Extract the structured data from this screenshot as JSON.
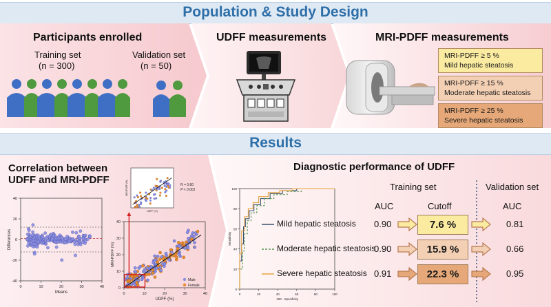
{
  "banner_top": "Population & Study Design",
  "banner_mid": "Results",
  "design": {
    "participants": {
      "title": "Participants enrolled",
      "training_label": "Training set",
      "training_n": "(n = 300)",
      "validation_label": "Validation set",
      "validation_n": "(n = 50)"
    },
    "udff": {
      "title": "UDFF measurements"
    },
    "mri": {
      "title": "MRI-PDFF measurements",
      "grades": [
        {
          "threshold": "MRI-PDFF ≥ 5 %",
          "label": "Mild hepatic steatosis",
          "color": "#fbeba1"
        },
        {
          "threshold": "MRI-PDFF ≥ 15 %",
          "label": "Moderate hepatic steatosis",
          "color": "#f3cfb3"
        },
        {
          "threshold": "MRI-PDFF ≥ 25 %",
          "label": "Severe hepatic steatosis",
          "color": "#e6a878"
        }
      ]
    }
  },
  "results": {
    "corr_title_1": "Correlation between",
    "corr_title_2": "UDFF and MRI-PDFF",
    "perf_title": "Diagnostic performance of UDFF",
    "training_header": "Training set",
    "validation_header": "Validation set",
    "auc_label": "AUC",
    "cutoff_label": "Cutoff",
    "rows": [
      {
        "name": "Mild hepatic steatosis",
        "auc_train": "0.90",
        "cutoff": "7.6 %",
        "auc_val": "0.81",
        "color": "#fbeba1",
        "line": "#37506e"
      },
      {
        "name": "Moderate hepatic steatosis",
        "auc_train": "0.90",
        "cutoff": "15.9 %",
        "auc_val": "0.66",
        "color": "#f3cfb3",
        "line": "#5c9a5a"
      },
      {
        "name": "Severe hepatic steatosis",
        "auc_train": "0.91",
        "cutoff": "22.3 %",
        "auc_val": "0.95",
        "color": "#e6a878",
        "line": "#e8a33c"
      }
    ]
  },
  "plots": {
    "bland_altman": {
      "ylabel": "Differences",
      "xlabel": "Means",
      "x_ticks": [
        "0",
        "10",
        "20",
        "30",
        "40"
      ],
      "y_ticks": [
        "40",
        "20",
        "0",
        "-20",
        "-40"
      ]
    },
    "scatter": {
      "ylabel": "MRI-PDFF (%)",
      "xlabel": "UDFF (%)",
      "x_ticks": [
        "0",
        "10",
        "20",
        "30",
        "40"
      ],
      "y_ticks": [
        "0",
        "10",
        "20",
        "30",
        "40"
      ],
      "legend_male": "Male",
      "legend_female": "Female",
      "male_color": "#8b8fe0",
      "female_color": "#e88a2e"
    },
    "inset": {
      "stat_r": "R = 0.60",
      "stat_p": "P < 0.001",
      "ylabel": "MRI-PDFF (%)",
      "xlabel": "UDFF (%)"
    },
    "roc": {
      "ylabel": "Sensitivity",
      "xlabel": "100 - Specificity",
      "x_ticks": [
        "0",
        "20",
        "40",
        "60",
        "80",
        "100"
      ],
      "y_ticks": [
        "0",
        "20",
        "40",
        "60",
        "80",
        "100"
      ]
    }
  }
}
